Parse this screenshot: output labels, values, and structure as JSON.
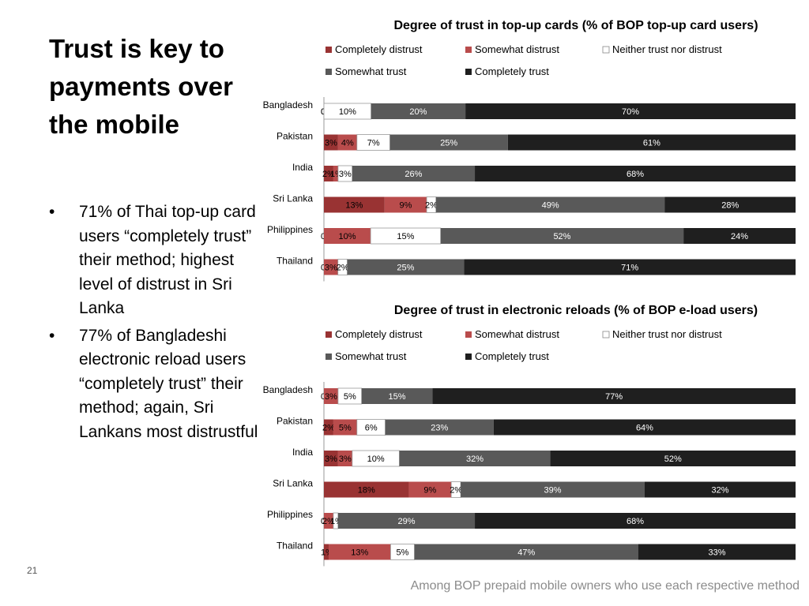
{
  "slide": {
    "title": "Trust is key to payments over the mobile",
    "bullets": [
      "71% of Thai top-up card users “completely trust” their method; highest level of distrust in Sri Lanka",
      "77% of Bangladeshi electronic reload users “completely trust” their method; again, Sri Lankans most distrustful"
    ],
    "slide_number": "21",
    "footnote": "Among BOP prepaid mobile owners who use each respective method"
  },
  "colors": {
    "completely_distrust": "#993333",
    "somewhat_distrust": "#b94c4c",
    "neither": "#ffffff",
    "somewhat_trust": "#595959",
    "completely_trust": "#1f1f1f"
  },
  "chart_data": [
    {
      "type": "bar",
      "orientation": "horizontal",
      "stacked": "percent",
      "title": "Degree of trust in top-up cards (% of BOP  top-up card users)",
      "legend_position": "top",
      "categories": [
        "Bangladesh",
        "Pakistan",
        "India",
        "Sri Lanka",
        "Philippines",
        "Thailand"
      ],
      "series": [
        {
          "name": "Completely distrust",
          "values": [
            0,
            3,
            2,
            13,
            0,
            0
          ]
        },
        {
          "name": "Somewhat distrust",
          "values": [
            0,
            4,
            1,
            9,
            10,
            3
          ]
        },
        {
          "name": "Neither trust nor distrust",
          "values": [
            10,
            7,
            3,
            2,
            15,
            2
          ]
        },
        {
          "name": "Somewhat trust",
          "values": [
            20,
            25,
            26,
            49,
            52,
            25
          ]
        },
        {
          "name": "Completely trust",
          "values": [
            70,
            61,
            68,
            28,
            24,
            71
          ]
        }
      ]
    },
    {
      "type": "bar",
      "orientation": "horizontal",
      "stacked": "percent",
      "title": "Degree of trust in electronic reloads (% of BOP e-load users)",
      "legend_position": "top",
      "categories": [
        "Bangladesh",
        "Pakistan",
        "India",
        "Sri Lanka",
        "Philippines",
        "Thailand"
      ],
      "series": [
        {
          "name": "Completely distrust",
          "values": [
            0,
            2,
            3,
            18,
            0,
            1
          ]
        },
        {
          "name": "Somewhat distrust",
          "values": [
            3,
            5,
            3,
            9,
            2,
            13
          ]
        },
        {
          "name": "Neither trust nor distrust",
          "values": [
            5,
            6,
            10,
            2,
            1,
            5
          ]
        },
        {
          "name": "Somewhat trust",
          "values": [
            15,
            23,
            32,
            39,
            29,
            47
          ]
        },
        {
          "name": "Completely trust",
          "values": [
            77,
            64,
            52,
            32,
            68,
            33
          ]
        }
      ]
    }
  ]
}
